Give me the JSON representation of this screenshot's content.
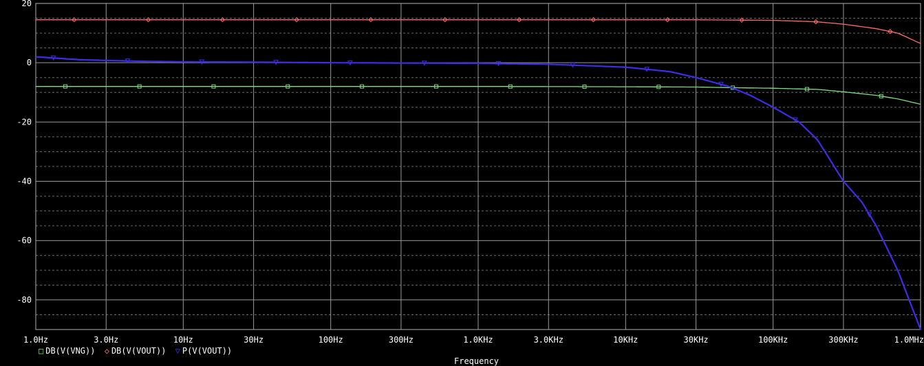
{
  "chart_data": {
    "type": "line",
    "xscale": "log",
    "xlim": [
      1,
      1000000
    ],
    "ylim": [
      -90,
      20
    ],
    "grid": true,
    "background": "#000000",
    "xlabel": "Frequency",
    "ylabel": "",
    "x_ticks": [
      {
        "value": 1,
        "label": "1.0Hz"
      },
      {
        "value": 3,
        "label": "3.0Hz"
      },
      {
        "value": 10,
        "label": "10Hz"
      },
      {
        "value": 30,
        "label": "30Hz"
      },
      {
        "value": 100,
        "label": "100Hz"
      },
      {
        "value": 300,
        "label": "300Hz"
      },
      {
        "value": 1000,
        "label": "1.0KHz"
      },
      {
        "value": 3000,
        "label": "3.0KHz"
      },
      {
        "value": 10000,
        "label": "10KHz"
      },
      {
        "value": 30000,
        "label": "30KHz"
      },
      {
        "value": 100000,
        "label": "100KHz"
      },
      {
        "value": 300000,
        "label": "300KHz"
      },
      {
        "value": 1000000,
        "label": "1.0MHz"
      }
    ],
    "y_ticks": [
      {
        "value": 20,
        "label": "20"
      },
      {
        "value": 0,
        "label": "0"
      },
      {
        "value": -20,
        "label": "-20"
      },
      {
        "value": -40,
        "label": "-40"
      },
      {
        "value": -60,
        "label": "-60"
      },
      {
        "value": -80,
        "label": "-80"
      }
    ],
    "series": [
      {
        "name": "DB(V(VNG))",
        "color": "#7fdf7f",
        "marker": "square",
        "x": [
          1,
          10,
          100,
          1000,
          10000,
          30000,
          50000,
          100000,
          200000,
          300000,
          500000,
          700000,
          1000000
        ],
        "y": [
          -8,
          -8,
          -8,
          -8,
          -8.1,
          -8.2,
          -8.4,
          -8.6,
          -9,
          -9.8,
          -11,
          -12.2,
          -14
        ]
      },
      {
        "name": "DB(V(VOUT))",
        "color": "#ff6b6b",
        "marker": "diamond",
        "x": [
          1,
          10,
          100,
          1000,
          10000,
          30000,
          50000,
          100000,
          200000,
          300000,
          500000,
          700000,
          1000000
        ],
        "y": [
          14.5,
          14.5,
          14.5,
          14.5,
          14.5,
          14.5,
          14.4,
          14.3,
          13.8,
          13,
          11.5,
          10,
          6.5
        ]
      },
      {
        "name": "P(V(VOUT))",
        "color": "#3e2de6",
        "marker": "triangle-down",
        "x": [
          1,
          2,
          5,
          10,
          30,
          100,
          1000,
          3000,
          10000,
          20000,
          30000,
          50000,
          70000,
          100000,
          150000,
          200000,
          300000,
          400000,
          500000,
          700000,
          1000000
        ],
        "y": [
          2,
          1,
          0.5,
          0.3,
          0.2,
          0,
          -0.2,
          -0.5,
          -1.5,
          -3,
          -5,
          -8,
          -11,
          -15,
          -20,
          -26,
          -40,
          -47,
          -55,
          -70,
          -90
        ]
      }
    ]
  }
}
